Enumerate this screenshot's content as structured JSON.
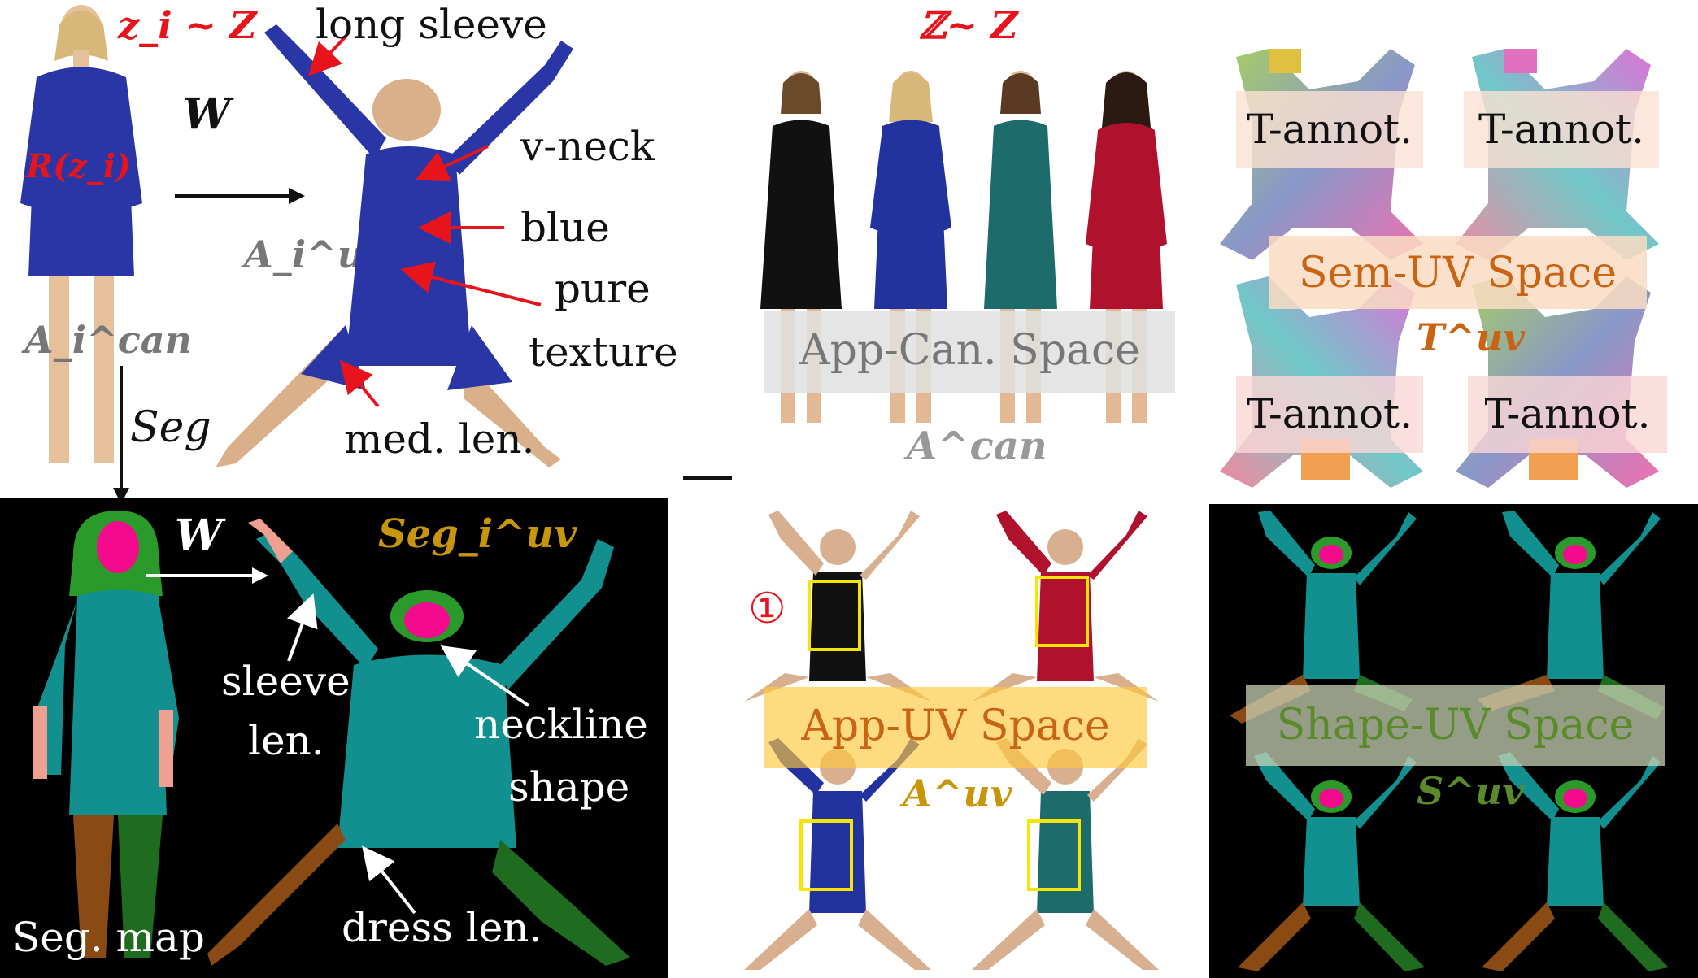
{
  "panel_top_left": {
    "z_sample": "z_i ~ Z",
    "render_label": "R(z_i)",
    "warp_symbol": "W",
    "canonical_app": "A_i^can",
    "uv_app": "A_i^uv",
    "seg_arrow": "Seg",
    "annotations": [
      "long sleeve",
      "v-neck",
      "blue",
      "pure",
      "texture",
      "med. len."
    ]
  },
  "panel_bottom_left": {
    "warp_symbol": "W",
    "seg_uv": "Seg_i^uv",
    "seg_map_label": "Seg. map",
    "annotations": [
      "sleeve",
      "len.",
      "neckline",
      "shape",
      "dress len."
    ]
  },
  "panel_top_middle": {
    "set_sample": "ℤ~ Z",
    "space_label": "App-Can. Space",
    "set_symbol": "A^can",
    "dress_colors": [
      "#111111",
      "#2233a0",
      "#1d6b6b",
      "#b0122e"
    ]
  },
  "panel_bottom_middle": {
    "marker": "①",
    "space_label": "App-UV Space",
    "set_symbol": "A^uv"
  },
  "panel_top_right": {
    "annot_labels": [
      "T-annot.",
      "T-annot.",
      "T-annot.",
      "T-annot."
    ],
    "space_label": "Sem-UV Space",
    "set_symbol": "T^uv"
  },
  "panel_bottom_right": {
    "space_label": "Shape-UV Space",
    "set_symbol": "S^uv"
  },
  "colors": {
    "dress_blue": "#2a36a6",
    "seg_teal": "#129090",
    "seg_brown": "#8a4a14",
    "seg_green": "#1f6b1f",
    "seg_pink": "#f40a8c",
    "seg_peach": "#f0a090",
    "accent_red": "#e8141c",
    "accent_gold": "#c8960a",
    "shape_green": "#5a8a2a",
    "sem_orange": "#c86414"
  }
}
